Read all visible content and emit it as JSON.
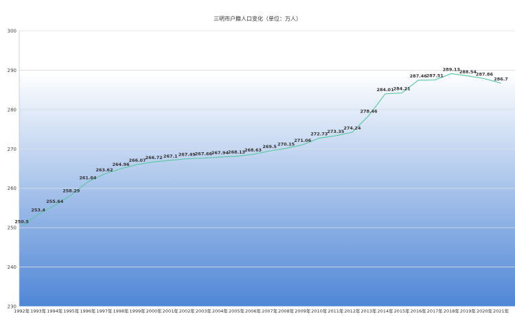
{
  "chart_data": {
    "type": "line",
    "title": "三明市户籍人口变化（单位：万人）",
    "xlabel": "",
    "ylabel": "",
    "ylim": [
      230,
      300
    ],
    "y_ticks": [
      230,
      240,
      250,
      260,
      270,
      280,
      290,
      300
    ],
    "grid": true,
    "categories": [
      "1992年",
      "1993年",
      "1994年",
      "1995年",
      "1996年",
      "1997年",
      "1998年",
      "1999年",
      "2000年",
      "2001年",
      "2002年",
      "2003年",
      "2004年",
      "2005年",
      "2006年",
      "2007年",
      "2008年",
      "2009年",
      "2010年",
      "2011年",
      "2012年",
      "2013年",
      "2014年",
      "2015年",
      "2016年",
      "2017年",
      "2018年",
      "2019年",
      "2020年",
      "2021年"
    ],
    "series": [
      {
        "values": [
          250.5,
          253.4,
          255.64,
          258.29,
          261.64,
          263.62,
          264.96,
          266.07,
          266.72,
          267.1,
          267.49,
          267.66,
          267.94,
          268.13,
          268.63,
          269.5,
          270.15,
          271.06,
          272.73,
          273.35,
          274.24,
          278.46,
          284.01,
          284.21,
          287.46,
          287.51,
          289.13,
          288.54,
          287.86,
          286.7
        ],
        "labels": [
          "250.5",
          "253.4",
          "255.64",
          "258.29",
          "261.64",
          "263.62",
          "264.96",
          "266.07",
          "266.72",
          "267.1",
          "267.49",
          "267.66",
          "267.94",
          "268.13",
          "268.63",
          "269.5",
          "270.15",
          "271.06",
          "272.73",
          "273.35",
          "274.24",
          "278.46",
          "284.01",
          "284.21",
          "287.46",
          "287.51",
          "289.13",
          "288.54",
          "287.86",
          "286.7"
        ],
        "color": "#5ec8a6"
      }
    ],
    "background_gradient": [
      "#ffffff",
      "#4f86d6"
    ],
    "grid_color": "#d8dde6"
  }
}
